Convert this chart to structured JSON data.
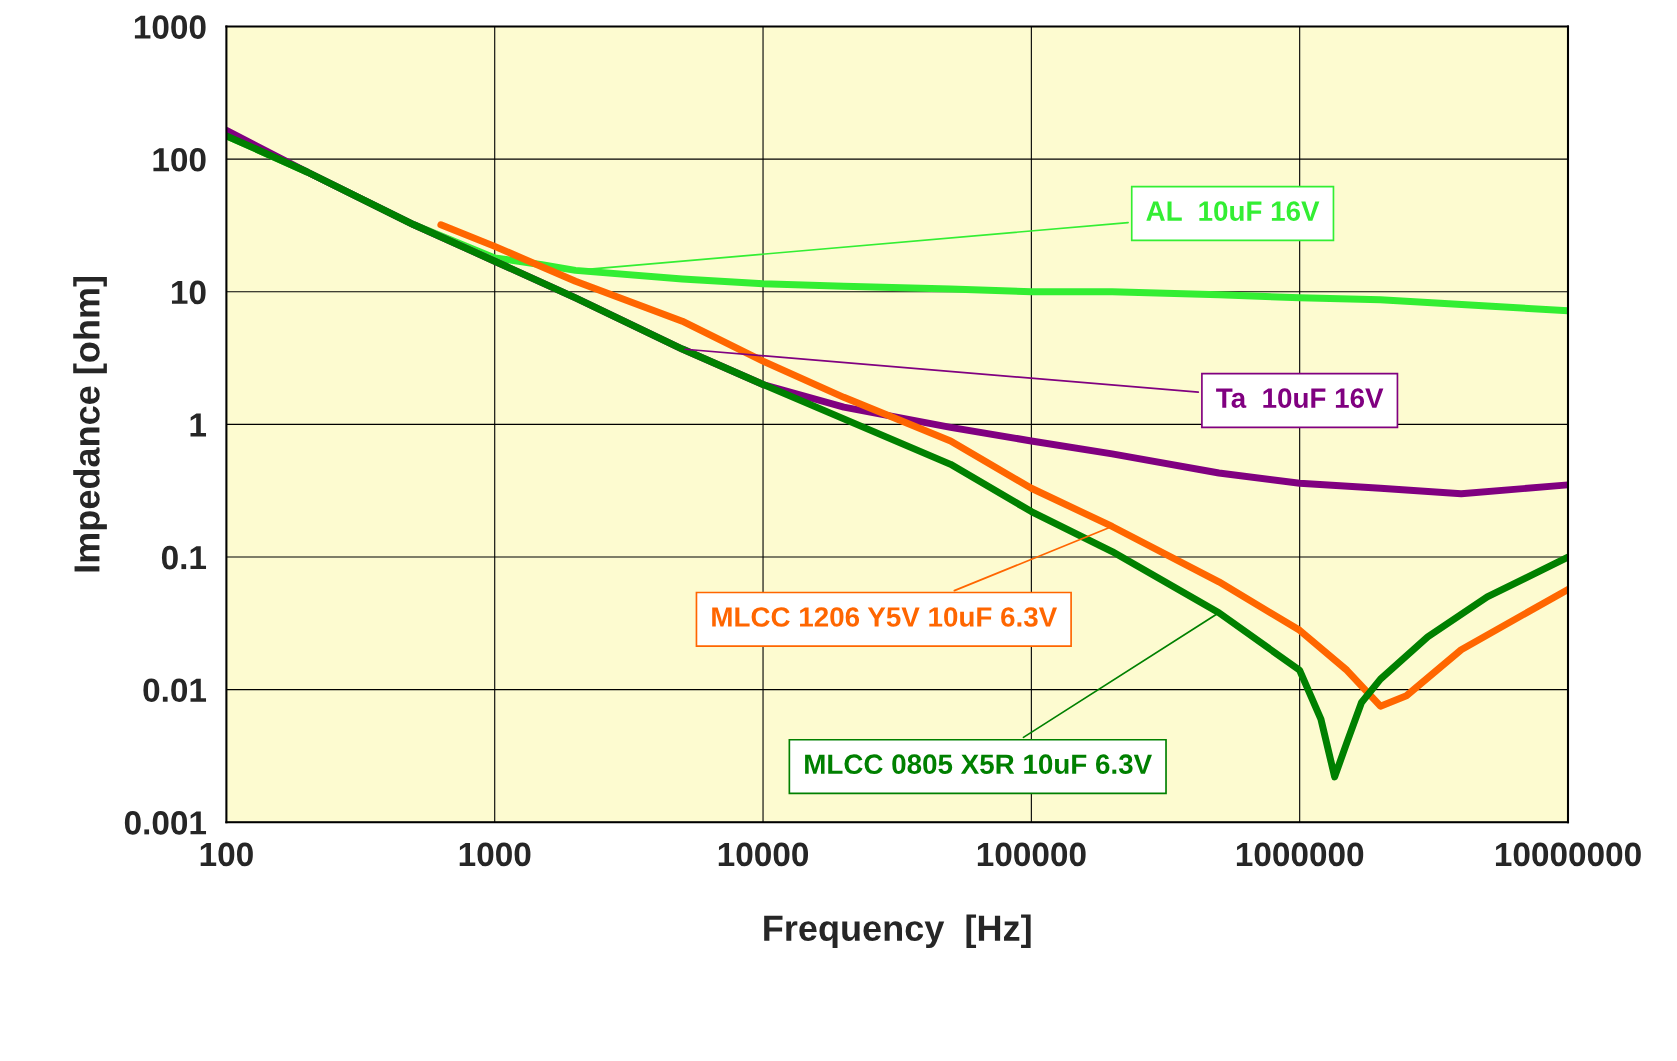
{
  "chart_data": {
    "type": "line",
    "xlabel": "Frequency  [Hz]",
    "ylabel": "Impedance [ohm]",
    "log": "xy",
    "xlim": [
      100,
      10000000
    ],
    "ylim": [
      0.001,
      1000
    ],
    "xticks": [
      100,
      1000,
      10000,
      100000,
      1000000,
      10000000
    ],
    "yticks": [
      0.001,
      0.01,
      0.1,
      1,
      10,
      100,
      1000
    ],
    "grid": true,
    "legend": false,
    "marker": "none",
    "line_style": "solid",
    "series": [
      {
        "name": "AL  10uF 16V",
        "color": "#33ee33",
        "x": [
          100,
          200,
          500,
          1000,
          1500,
          2000,
          5000,
          10000,
          20000,
          50000,
          100000,
          200000,
          500000,
          1000000,
          2000000,
          5000000,
          10000000
        ],
        "values": [
          150,
          80,
          32,
          18,
          16,
          14.5,
          12.5,
          11.5,
          11,
          10.5,
          10,
          10,
          9.5,
          9,
          8.7,
          7.8,
          7.2
        ]
      },
      {
        "name": "Ta  10uF 16V",
        "color": "#800080",
        "x": [
          100,
          200,
          500,
          1000,
          2000,
          5000,
          10000,
          20000,
          50000,
          100000,
          200000,
          500000,
          1000000,
          2000000,
          4000000,
          10000000
        ],
        "values": [
          165,
          80,
          32,
          17,
          9,
          3.7,
          2.0,
          1.35,
          0.95,
          0.75,
          0.6,
          0.43,
          0.36,
          0.33,
          0.3,
          0.35
        ]
      },
      {
        "name": "MLCC 1206 Y5V 10uF 6.3V",
        "color": "#ff6600",
        "x": [
          630,
          1000,
          2000,
          5000,
          10000,
          20000,
          50000,
          100000,
          200000,
          500000,
          1000000,
          1500000,
          2000000,
          2500000,
          4000000,
          10000000
        ],
        "values": [
          32,
          22,
          12,
          6,
          3,
          1.6,
          0.75,
          0.33,
          0.17,
          0.065,
          0.028,
          0.014,
          0.0075,
          0.009,
          0.02,
          0.057
        ]
      },
      {
        "name": "MLCC 0805 X5R 10uF 6.3V",
        "color": "#008000",
        "x": [
          100,
          200,
          500,
          1000,
          2000,
          5000,
          10000,
          20000,
          50000,
          100000,
          200000,
          500000,
          1000000,
          1200000,
          1350000,
          1500000,
          1700000,
          2000000,
          3000000,
          5000000,
          10000000
        ],
        "values": [
          150,
          80,
          32,
          17,
          9,
          3.7,
          2.0,
          1.1,
          0.5,
          0.22,
          0.11,
          0.038,
          0.014,
          0.006,
          0.0022,
          0.004,
          0.008,
          0.012,
          0.025,
          0.05,
          0.1
        ]
      }
    ]
  }
}
